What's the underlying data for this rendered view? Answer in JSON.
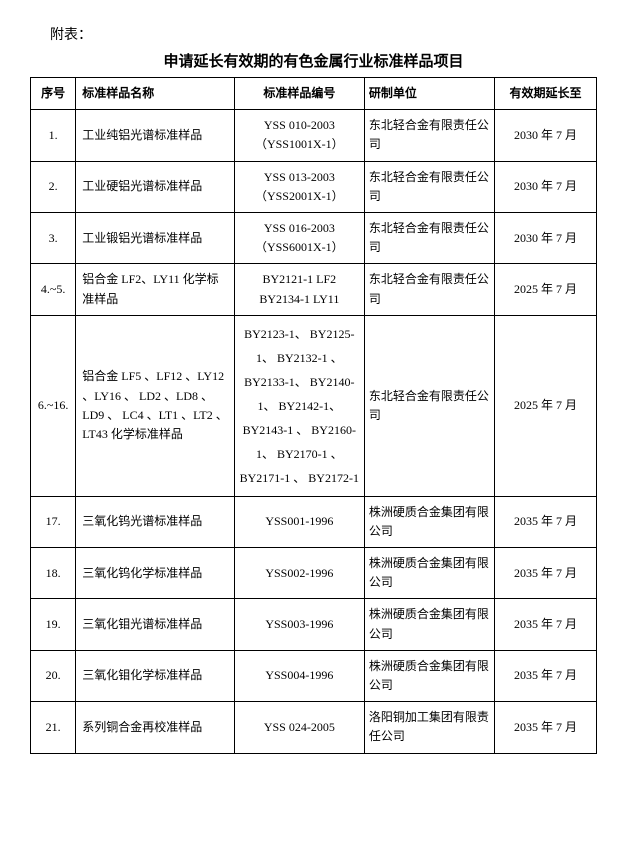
{
  "attachment_label": "附表：",
  "title": "申请延长有效期的有色金属行业标准样品项目",
  "columns": [
    "序号",
    "标准样品名称",
    "标准样品编号",
    "研制单位",
    "有效期延长至"
  ],
  "rows": [
    {
      "idx": "1.",
      "name": "工业纯铝光谱标准样品",
      "code": "YSS 010-2003（YSS1001X-1）",
      "org": "东北轻合金有限责任公司",
      "date": "2030 年 7 月"
    },
    {
      "idx": "2.",
      "name": "工业硬铝光谱标准样品",
      "code": "YSS 013-2003（YSS2001X-1）",
      "org": "东北轻合金有限责任公司",
      "date": "2030 年 7 月"
    },
    {
      "idx": "3.",
      "name": "工业锻铝光谱标准样品",
      "code": "YSS 016-2003（YSS6001X-1）",
      "org": "东北轻合金有限责任公司",
      "date": "2030 年 7 月"
    },
    {
      "idx": "4.~5.",
      "name": "铝合金 LF2、LY11 化学标准样品",
      "code": "BY2121-1 LF2 BY2134-1 LY11",
      "org": "东北轻合金有限责任公司",
      "date": "2025 年 7 月"
    },
    {
      "idx": "6.~16.",
      "name": "铝合金 LF5 、LF12 、LY12 、LY16 、 LD2 、LD8 、 LD9 、 LC4 、LT1 、LT2 、 LT43 化学标准样品",
      "code": "BY2123-1、 BY2125-1、 BY2132-1 、 BY2133-1、 BY2140-1、 BY2142-1、 BY2143-1 、 BY2160-1、 BY2170-1 、 BY2171-1 、 BY2172-1",
      "org": "东北轻合金有限责任公司",
      "date": "2025 年 7 月"
    },
    {
      "idx": "17.",
      "name": "三氧化钨光谱标准样品",
      "code": "YSS001-1996",
      "org": "株洲硬质合金集团有限公司",
      "date": "2035 年 7 月"
    },
    {
      "idx": "18.",
      "name": "三氧化钨化学标准样品",
      "code": "YSS002-1996",
      "org": "株洲硬质合金集团有限公司",
      "date": "2035 年 7 月"
    },
    {
      "idx": "19.",
      "name": "三氧化钼光谱标准样品",
      "code": "YSS003-1996",
      "org": "株洲硬质合金集团有限公司",
      "date": "2035 年 7 月"
    },
    {
      "idx": "20.",
      "name": "三氧化钼化学标准样品",
      "code": "YSS004-1996",
      "org": "株洲硬质合金集团有限公司",
      "date": "2035 年 7 月"
    },
    {
      "idx": "21.",
      "name": "系列铜合金再校准样品",
      "code": "YSS 024-2005",
      "org": "洛阳铜加工集团有限责任公司",
      "date": "2035 年 7 月"
    }
  ]
}
